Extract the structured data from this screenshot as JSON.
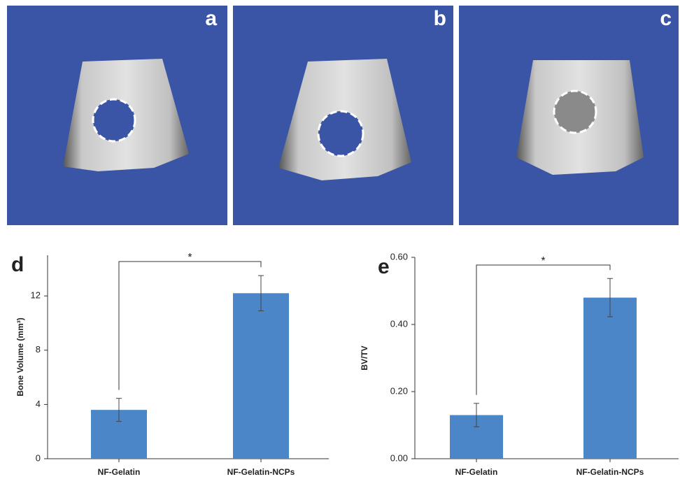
{
  "panels": [
    {
      "label": "a"
    },
    {
      "label": "b"
    },
    {
      "label": "c"
    }
  ],
  "chart_data": [
    {
      "type": "bar",
      "panel_label": "d",
      "y_label": "Bone Volume (mm³)",
      "categories": [
        "NF-Gelatin",
        "NF-Gelatin-NCPs"
      ],
      "values": [
        3.6,
        12.2
      ],
      "errors": [
        0.85,
        1.3
      ],
      "color": "#4a86c8",
      "ylim": [
        0,
        15
      ],
      "yticks": [
        0,
        4,
        8,
        12
      ],
      "annotation": "*"
    },
    {
      "type": "bar",
      "panel_label": "e",
      "y_label": "BV/TV",
      "categories": [
        "NF-Gelatin",
        "NF-Gelatin-NCPs"
      ],
      "values": [
        0.13,
        0.48
      ],
      "errors": [
        0.035,
        0.057
      ],
      "color": "#4a86c8",
      "ylim": [
        0,
        0.6
      ],
      "yticks": [
        {
          "value": 0,
          "label": "0.00"
        },
        {
          "value": 0.2,
          "label": "0.20"
        },
        {
          "value": 0.4,
          "label": "0.40"
        },
        {
          "value": 0.6,
          "label": "0.60"
        }
      ],
      "annotation": "*"
    }
  ]
}
